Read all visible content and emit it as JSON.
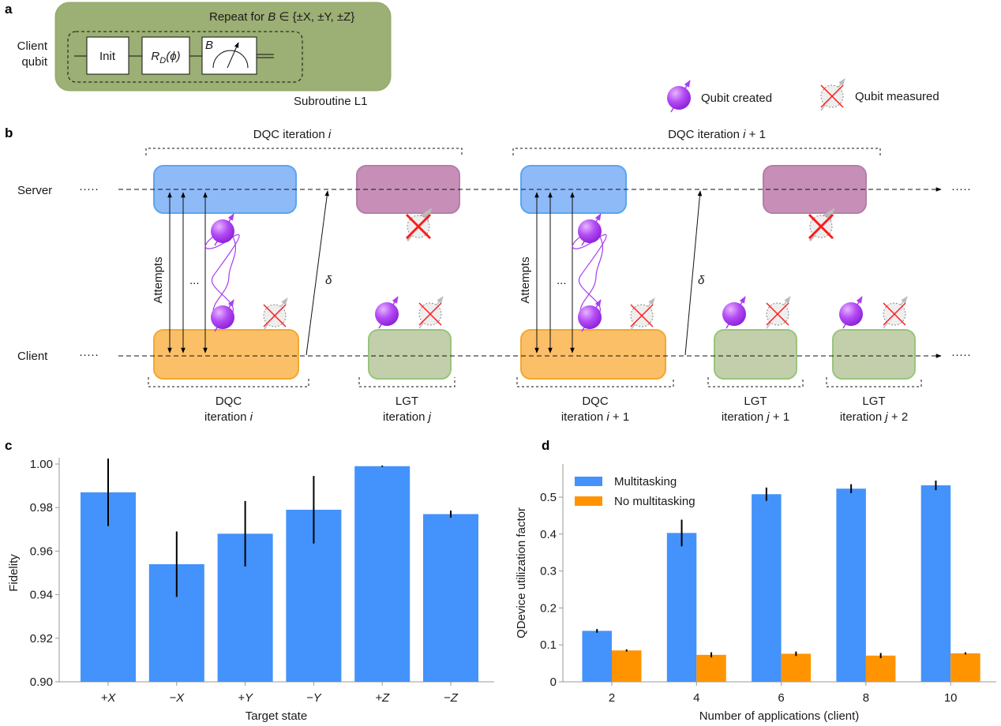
{
  "panel_labels": {
    "a": "a",
    "b": "b",
    "c": "c",
    "d": "d"
  },
  "panel_a": {
    "repeat_prefix": "Repeat for ",
    "repeat_var": "B",
    "repeat_set": " ∈ {±X, ±Y, ±Z}",
    "client_qubit_line1": "Client",
    "client_qubit_line2": "qubit",
    "init_gate": "Init",
    "rotation_gate": "R",
    "rotation_sub": "D",
    "rotation_arg": "(ϕ)",
    "measure_basis": "B",
    "subroutine_label": "Subroutine L1",
    "colors": {
      "background": "#9caf74",
      "border": "#8fa868"
    }
  },
  "legend_b": {
    "qubit_created": "Qubit created",
    "qubit_measured": "Qubit measured"
  },
  "panel_b": {
    "server_label": "Server",
    "client_label": "Client",
    "ellipsis": "·····",
    "attempts_label": "Attempts",
    "attempts_ellipsis": "...",
    "delta": "δ",
    "top_groups": [
      {
        "label": "DQC iteration ",
        "var": "i",
        "suffix": ""
      },
      {
        "label": "DQC iteration ",
        "var": "i",
        "suffix": " + 1"
      }
    ],
    "bottom_groups": [
      {
        "line1": "DQC",
        "line2": "iteration ",
        "var": "i",
        "suffix": ""
      },
      {
        "line1": "LGT",
        "line2": "iteration ",
        "var": "j",
        "suffix": ""
      },
      {
        "line1": "DQC",
        "line2": "iteration ",
        "var": "i",
        "suffix": " + 1"
      },
      {
        "line1": "LGT",
        "line2": "iteration ",
        "var": "j",
        "suffix": " + 1"
      },
      {
        "line1": "LGT",
        "line2": "iteration ",
        "var": "j",
        "suffix": " + 2"
      }
    ],
    "colors": {
      "server_dqc": "#8fbaf8",
      "server_lgt": "#c78fb8",
      "client_dqc": "#fbbf68",
      "client_lgt": "#c3cfab",
      "qubit": "#a83ef0",
      "measured_x": "#ff1a1a"
    }
  },
  "chart_data": [
    {
      "type": "bar",
      "title": "",
      "xlabel": "Target state",
      "ylabel": "Fidelity",
      "categories": [
        "+X",
        "−X",
        "+Y",
        "−Y",
        "+Z",
        "−Z"
      ],
      "values": [
        0.987,
        0.954,
        0.968,
        0.979,
        0.999,
        0.977
      ],
      "errors": [
        0.0155,
        0.015,
        0.015,
        0.0155,
        0.0003,
        0.0016
      ],
      "ylim": [
        0.9,
        1.0
      ],
      "yticks": [
        "0.90",
        "0.92",
        "0.94",
        "0.96",
        "0.98",
        "1.00"
      ],
      "grid": false,
      "color": "#4492fb"
    },
    {
      "type": "bar",
      "title": "",
      "xlabel": "Number of applications (client)",
      "ylabel": "QDevice utilization factor",
      "categories": [
        "2",
        "4",
        "6",
        "8",
        "10"
      ],
      "series": [
        {
          "name": "Multitasking",
          "values": [
            0.138,
            0.403,
            0.508,
            0.523,
            0.532
          ],
          "errors": [
            0.005,
            0.036,
            0.018,
            0.012,
            0.013
          ],
          "color": "#4492fb"
        },
        {
          "name": "No multitasking",
          "values": [
            0.085,
            0.073,
            0.076,
            0.071,
            0.077
          ],
          "errors": [
            0.003,
            0.007,
            0.006,
            0.007,
            0.003
          ],
          "color": "#ff9400"
        }
      ],
      "ylim": [
        0,
        0.58
      ],
      "yticks": [
        "0",
        "0.1",
        "0.2",
        "0.3",
        "0.4",
        "0.5"
      ],
      "legend": "top-left",
      "grid": false
    }
  ]
}
